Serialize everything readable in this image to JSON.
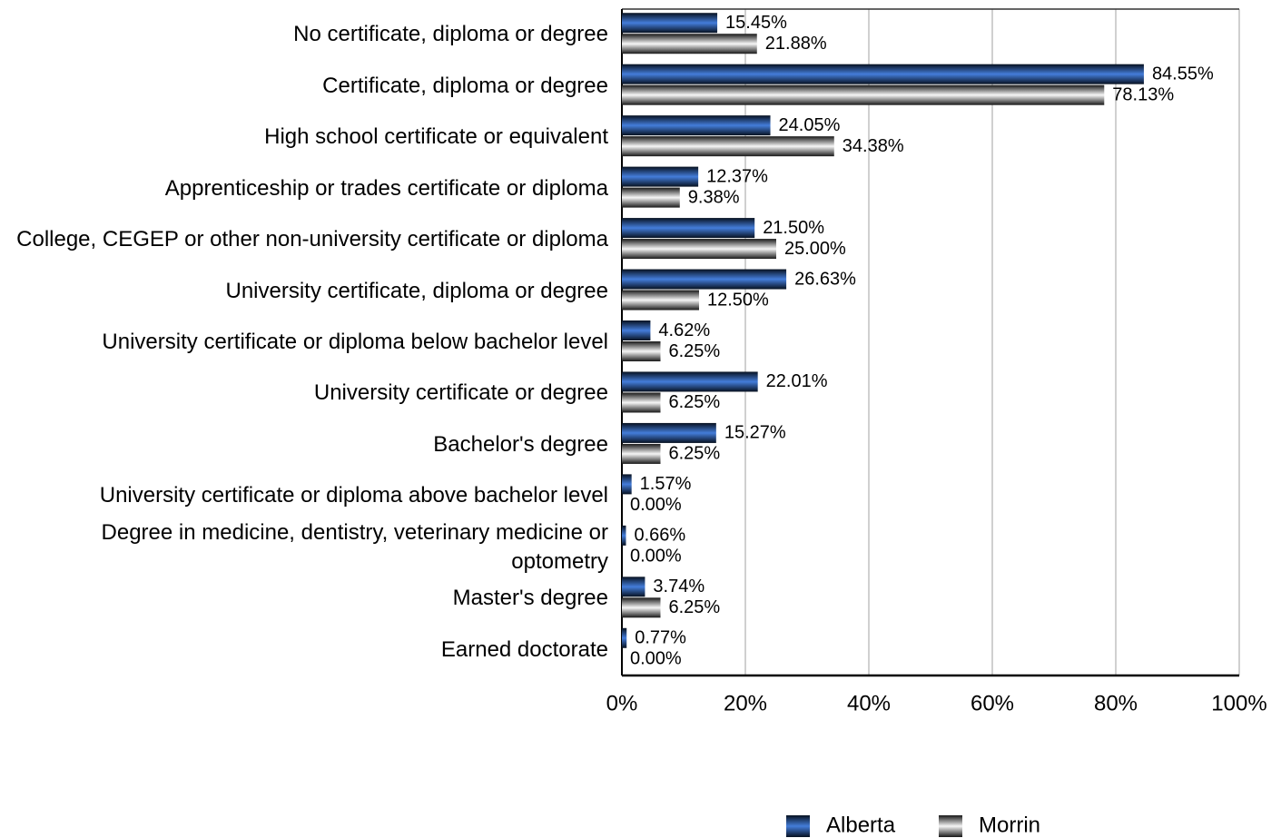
{
  "chart_data": {
    "type": "bar",
    "orientation": "horizontal",
    "categories": [
      "No certificate, diploma or degree",
      "Certificate, diploma or degree",
      "High school certificate or equivalent",
      "Apprenticeship or trades certificate or diploma",
      "College, CEGEP or other non-university certificate or diploma",
      "University certificate, diploma or degree",
      "University certificate or diploma below bachelor level",
      "University certificate or degree",
      "Bachelor's degree",
      "University certificate or diploma above bachelor level",
      "Degree in medicine, dentistry, veterinary medicine or optometry",
      "Master's degree",
      "Earned doctorate"
    ],
    "series": [
      {
        "name": "Alberta",
        "color": "#2f6fd6",
        "values": [
          15.45,
          84.55,
          24.05,
          12.37,
          21.5,
          26.63,
          4.62,
          22.01,
          15.27,
          1.57,
          0.66,
          3.74,
          0.77
        ],
        "value_labels": [
          "15.45%",
          "84.55%",
          "24.05%",
          "12.37%",
          "21.50%",
          "26.63%",
          "4.62%",
          "22.01%",
          "15.27%",
          "1.57%",
          "0.66%",
          "3.74%",
          "0.77%"
        ]
      },
      {
        "name": "Morrin",
        "color": "#a0a0a0",
        "values": [
          21.88,
          78.13,
          34.38,
          9.38,
          25.0,
          12.5,
          6.25,
          6.25,
          6.25,
          0.0,
          0.0,
          6.25,
          0.0
        ],
        "value_labels": [
          "21.88%",
          "78.13%",
          "34.38%",
          "9.38%",
          "25.00%",
          "12.50%",
          "6.25%",
          "6.25%",
          "6.25%",
          "0.00%",
          "0.00%",
          "6.25%",
          "0.00%"
        ]
      }
    ],
    "xlim": [
      0,
      100
    ],
    "xticks": [
      {
        "value": 0,
        "label": "0%"
      },
      {
        "value": 20,
        "label": "20%"
      },
      {
        "value": 40,
        "label": "40%"
      },
      {
        "value": 60,
        "label": "60%"
      },
      {
        "value": 80,
        "label": "80%"
      },
      {
        "value": 100,
        "label": "100%"
      }
    ],
    "grid": true,
    "legend": "bottom"
  }
}
